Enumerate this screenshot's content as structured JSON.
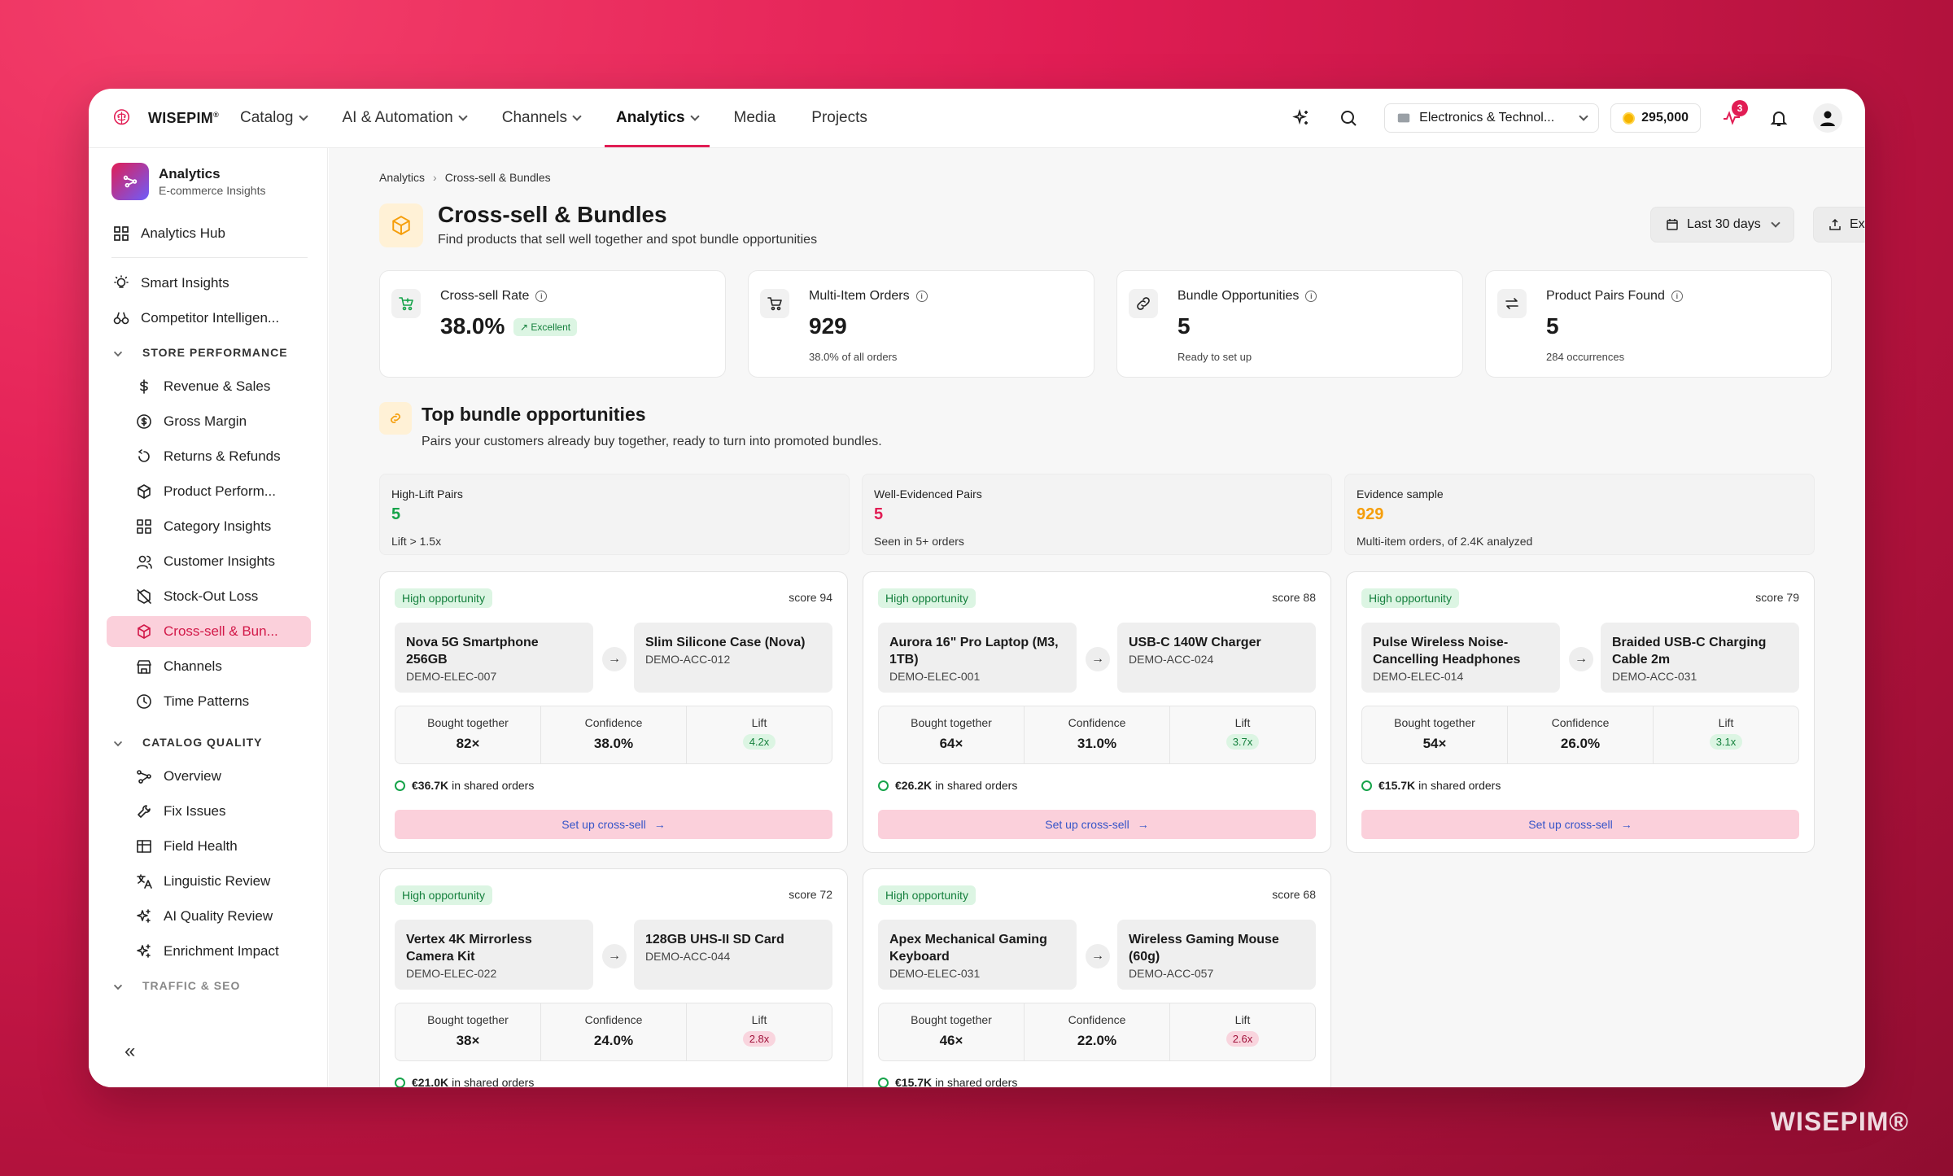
{
  "brand": {
    "name": "WISEPIM",
    "mark": "®"
  },
  "nav": [
    {
      "label": "Catalog",
      "chev": true
    },
    {
      "label": "AI & Automation",
      "chev": true
    },
    {
      "label": "Channels",
      "chev": true
    },
    {
      "label": "Analytics",
      "chev": true,
      "active": true
    },
    {
      "label": "Media",
      "chev": false
    },
    {
      "label": "Projects",
      "chev": false
    }
  ],
  "store": "Electronics & Technol...",
  "credits": "295,000",
  "activity_badge": "3",
  "sidebar": {
    "title": "Analytics",
    "subtitle": "E-commerce Insights",
    "hub": "Analytics Hub",
    "top": [
      {
        "label": "Smart Insights",
        "icon": "bulb-icon"
      },
      {
        "label": "Competitor Intelligen...",
        "icon": "binoculars-icon"
      }
    ],
    "sections": [
      {
        "label": "STORE PERFORMANCE",
        "items": [
          {
            "label": "Revenue & Sales",
            "icon": "dollar-icon"
          },
          {
            "label": "Gross Margin",
            "icon": "coin-icon"
          },
          {
            "label": "Returns & Refunds",
            "icon": "return-icon"
          },
          {
            "label": "Product Perform...",
            "icon": "box-icon"
          },
          {
            "label": "Category Insights",
            "icon": "grid-icon"
          },
          {
            "label": "Customer Insights",
            "icon": "users-icon"
          },
          {
            "label": "Stock-Out Loss",
            "icon": "box-off-icon"
          },
          {
            "label": "Cross-sell & Bun...",
            "icon": "box-icon",
            "active": true
          },
          {
            "label": "Channels",
            "icon": "store-icon"
          },
          {
            "label": "Time Patterns",
            "icon": "clock-icon"
          }
        ]
      },
      {
        "label": "CATALOG QUALITY",
        "items": [
          {
            "label": "Overview",
            "icon": "nodes-icon"
          },
          {
            "label": "Fix Issues",
            "icon": "wrench-icon"
          },
          {
            "label": "Field Health",
            "icon": "table-icon"
          },
          {
            "label": "Linguistic Review",
            "icon": "translate-icon"
          },
          {
            "label": "AI Quality Review",
            "icon": "sparkle-icon"
          },
          {
            "label": "Enrichment Impact",
            "icon": "sparkle-icon"
          }
        ]
      },
      {
        "label": "TRAFFIC & SEO",
        "items": [],
        "dim": true
      }
    ],
    "collapse": "«"
  },
  "breadcrumb": [
    "Analytics",
    "Cross-sell & Bundles"
  ],
  "page": {
    "title": "Cross-sell & Bundles",
    "subtitle": "Find products that sell well together and spot bundle opportunities",
    "range": "Last 30 days",
    "export": "Export"
  },
  "kpis": [
    {
      "label": "Cross-sell Rate",
      "value": "38.0%",
      "badge": "↗ Excellent",
      "sub": "",
      "icon": "cart-plus-icon"
    },
    {
      "label": "Multi-Item Orders",
      "value": "929",
      "sub": "38.0% of all orders",
      "icon": "cart-icon"
    },
    {
      "label": "Bundle Opportunities",
      "value": "5",
      "sub": "Ready to set up",
      "icon": "link-icon"
    },
    {
      "label": "Product Pairs Found",
      "value": "5",
      "sub": "284 occurrences",
      "icon": "swap-icon"
    }
  ],
  "section": {
    "title": "Top bundle opportunities",
    "subtitle": "Pairs your customers already buy together, ready to turn into promoted bundles."
  },
  "stats": [
    {
      "label": "High-Lift Pairs",
      "value": "5",
      "sub": "Lift > 1.5x",
      "color": "#16a34a"
    },
    {
      "label": "Well-Evidenced Pairs",
      "value": "5",
      "sub": "Seen in 5+ orders",
      "color": "#e11d54"
    },
    {
      "label": "Evidence sample",
      "value": "929",
      "sub": "Multi-item orders, of 2.4K analyzed",
      "color": "#f59e0b"
    }
  ],
  "labels": {
    "opp": "High opportunity",
    "bought": "Bought together",
    "confidence": "Confidence",
    "lift": "Lift",
    "shared_suffix": "in shared orders",
    "cta": "Set up cross-sell"
  },
  "cards": [
    {
      "score": "score 94",
      "a": {
        "name": "Nova 5G Smartphone 256GB",
        "code": "DEMO-ELEC-007"
      },
      "b": {
        "name": "Slim Silicone Case (Nova)",
        "code": "DEMO-ACC-012"
      },
      "bought": "82×",
      "confidence": "38.0%",
      "lift": "4.2x",
      "lift_tone": "g",
      "shared": "€36.7K"
    },
    {
      "score": "score 88",
      "a": {
        "name": "Aurora 16\" Pro Laptop (M3, 1TB)",
        "code": "DEMO-ELEC-001"
      },
      "b": {
        "name": "USB-C 140W Charger",
        "code": "DEMO-ACC-024"
      },
      "bought": "64×",
      "confidence": "31.0%",
      "lift": "3.7x",
      "lift_tone": "g",
      "shared": "€26.2K"
    },
    {
      "score": "score 79",
      "a": {
        "name": "Pulse Wireless Noise-Cancelling Headphones",
        "code": "DEMO-ELEC-014"
      },
      "b": {
        "name": "Braided USB-C Charging Cable 2m",
        "code": "DEMO-ACC-031"
      },
      "bought": "54×",
      "confidence": "26.0%",
      "lift": "3.1x",
      "lift_tone": "g",
      "shared": "€15.7K"
    },
    {
      "score": "score 72",
      "a": {
        "name": "Vertex 4K Mirrorless Camera Kit",
        "code": "DEMO-ELEC-022"
      },
      "b": {
        "name": "128GB UHS-II SD Card",
        "code": "DEMO-ACC-044"
      },
      "bought": "38×",
      "confidence": "24.0%",
      "lift": "2.8x",
      "lift_tone": "p",
      "shared": "€21.0K"
    },
    {
      "score": "score 68",
      "a": {
        "name": "Apex Mechanical Gaming Keyboard",
        "code": "DEMO-ELEC-031"
      },
      "b": {
        "name": "Wireless Gaming Mouse (60g)",
        "code": "DEMO-ACC-057"
      },
      "bought": "46×",
      "confidence": "22.0%",
      "lift": "2.6x",
      "lift_tone": "p",
      "shared": "€15.7K"
    }
  ],
  "watermark": "WISEPIM®"
}
